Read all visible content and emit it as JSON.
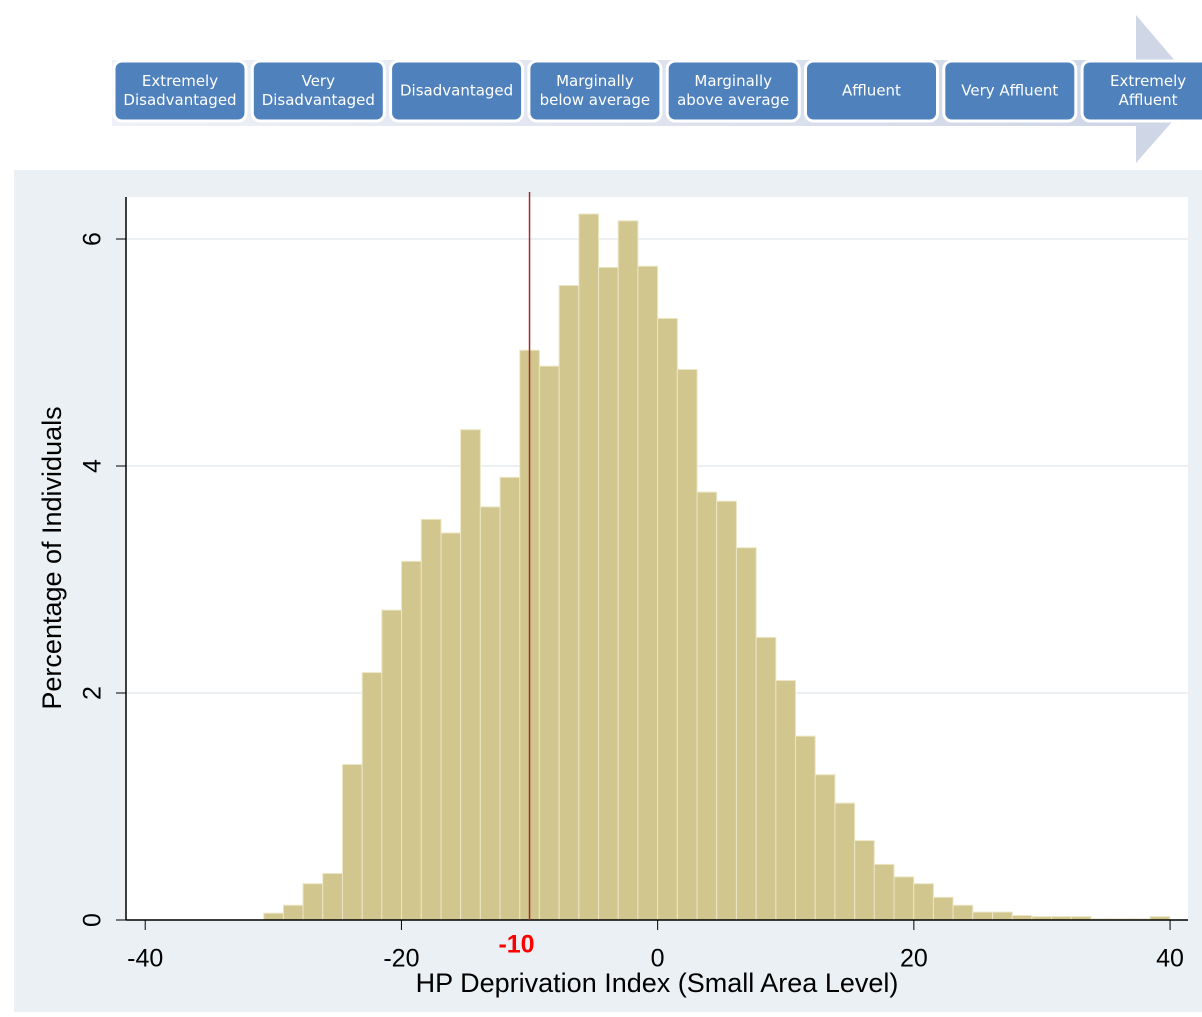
{
  "banner": {
    "labels": [
      [
        "Extremely",
        "Disadvantaged"
      ],
      [
        "Very",
        "Disadvantaged"
      ],
      [
        "Disadvantaged"
      ],
      [
        "Marginally",
        "below average"
      ],
      [
        "Marginally",
        "above average"
      ],
      [
        "Affluent"
      ],
      [
        "Very Affluent"
      ],
      [
        "Extremely",
        "Affluent"
      ]
    ]
  },
  "chart_data": {
    "type": "histogram",
    "x_label": "HP Deprivation Index (Small Area Level)",
    "y_label": "Percentage of Individuals",
    "bins": [
      -30.75,
      -29.21,
      -27.68,
      -26.14,
      -24.6,
      -23.06,
      -21.53,
      -19.99,
      -18.45,
      -16.91,
      -15.38,
      -13.84,
      -12.3,
      -10.76,
      -9.23,
      -7.69,
      -6.15,
      -4.61,
      -3.08,
      -1.54,
      0,
      1.54,
      3.08,
      4.61,
      6.15,
      7.69,
      9.23,
      10.76,
      12.3,
      13.84,
      15.38,
      16.91,
      18.45,
      19.99,
      21.53,
      23.06,
      24.6,
      26.14,
      27.68,
      29.21,
      30.75,
      32.29,
      33.83,
      35.36,
      36.9,
      38.44,
      39.98
    ],
    "values": [
      0.06,
      0.13,
      0.32,
      0.41,
      1.37,
      2.18,
      2.73,
      3.16,
      3.53,
      3.41,
      4.32,
      3.64,
      3.9,
      5.02,
      4.88,
      5.59,
      6.22,
      5.75,
      6.16,
      5.76,
      5.3,
      4.85,
      3.77,
      3.69,
      3.28,
      2.49,
      2.11,
      1.62,
      1.28,
      1.03,
      0.7,
      0.49,
      0.38,
      0.32,
      0.2,
      0.13,
      0.07,
      0.07,
      0.04,
      0.03,
      0.03,
      0.03,
      0.01,
      0.01,
      0.01,
      0.03
    ],
    "color": "#d1c68e",
    "xlim": [
      -41.5,
      41.4
    ],
    "xticks": [
      -40,
      -20,
      0,
      20,
      40
    ],
    "ylim": [
      0,
      6.37
    ],
    "yticks": [
      0,
      2,
      4,
      6
    ],
    "grid": true,
    "vline": -10,
    "vline_color": "#a52a2a",
    "vline_label_color": "#ff0000"
  }
}
